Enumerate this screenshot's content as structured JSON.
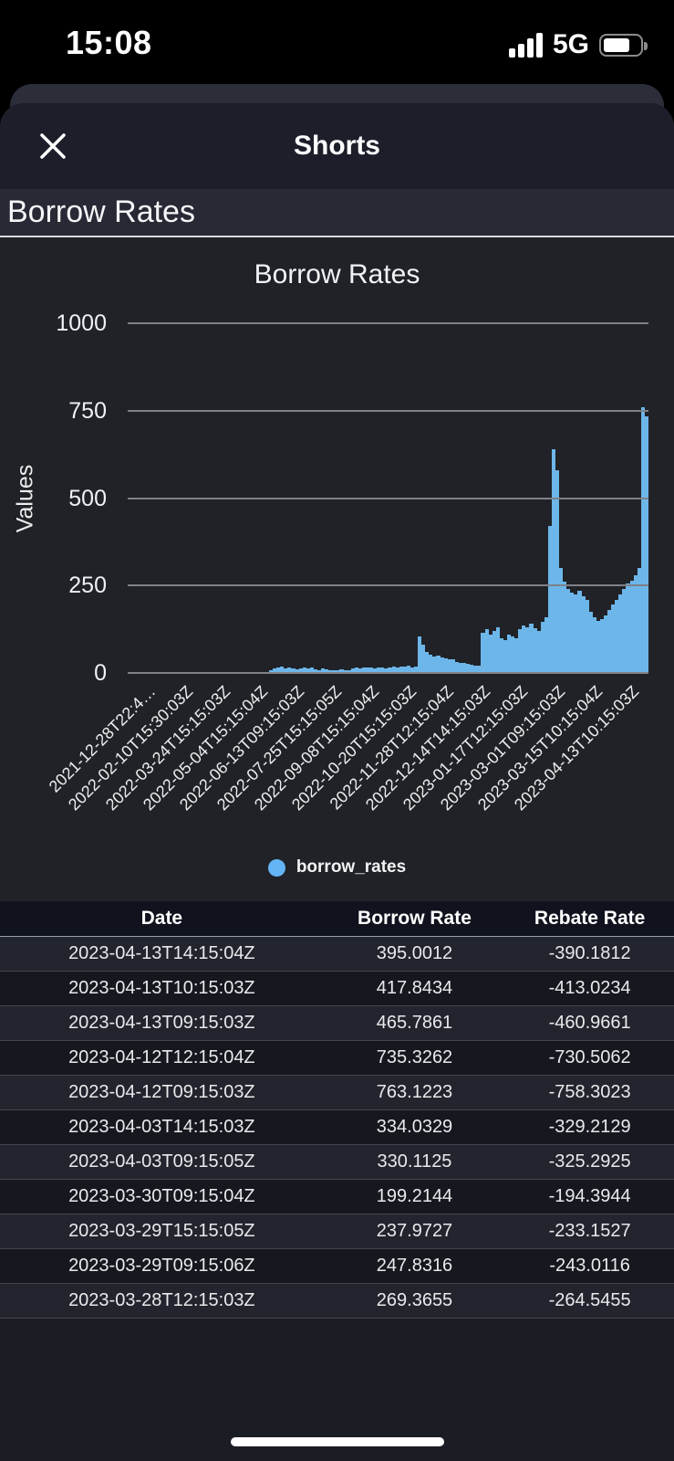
{
  "status_bar": {
    "time": "15:08",
    "network": "5G"
  },
  "sheet": {
    "title": "Shorts"
  },
  "section": {
    "title": "Borrow Rates"
  },
  "chart_data": {
    "type": "bar",
    "title": "Borrow Rates",
    "xlabel": "",
    "ylabel": "Values",
    "ylim": [
      0,
      1000
    ],
    "yticks": [
      0,
      250,
      500,
      750,
      1000
    ],
    "grid": "on",
    "legend_position": "bottom",
    "bar_color": "#6cb6ea",
    "legend_dot_color": "#64b5f6",
    "x_tick_labels": [
      "2021-12-28T22:4…",
      "2022-02-10T15:30:03Z",
      "2022-03-24T15:15:03Z",
      "2022-05-04T15:15:04Z",
      "2022-06-13T09:15:03Z",
      "2022-07-25T15:15:05Z",
      "2022-09-08T15:15:04Z",
      "2022-10-20T15:15:03Z",
      "2022-11-28T12:15:04Z",
      "2022-12-14T14:15:03Z",
      "2023-01-17T12:15:03Z",
      "2023-03-01T09:15:03Z",
      "2023-03-15T10:15:04Z",
      "2023-04-13T10:15:03Z"
    ],
    "series": [
      {
        "name": "borrow_rates",
        "values": [
          2,
          1,
          1,
          2,
          1,
          1,
          2,
          1,
          1,
          2,
          1,
          1,
          2,
          1,
          2,
          1,
          1,
          2,
          2,
          1,
          1,
          2,
          1,
          1,
          2,
          1,
          1,
          2,
          2,
          1,
          1,
          2,
          1,
          2,
          1,
          1,
          2,
          2,
          8,
          12,
          15,
          18,
          14,
          16,
          12,
          10,
          14,
          17,
          13,
          15,
          11,
          9,
          12,
          10,
          7,
          9,
          8,
          10,
          9,
          8,
          13,
          15,
          14,
          16,
          15,
          17,
          14,
          16,
          15,
          14,
          16,
          18,
          17,
          19,
          18,
          20,
          17,
          19,
          105,
          80,
          60,
          52,
          48,
          50,
          45,
          42,
          40,
          38,
          32,
          30,
          28,
          26,
          24,
          22,
          20,
          115,
          125,
          110,
          120,
          130,
          100,
          95,
          110,
          105,
          98,
          125,
          135,
          130,
          140,
          128,
          120,
          145,
          160,
          420,
          640,
          580,
          300,
          260,
          240,
          230,
          225,
          235,
          220,
          210,
          175,
          160,
          150,
          155,
          165,
          180,
          195,
          210,
          225,
          240,
          255,
          265,
          280,
          300,
          760,
          735
        ]
      }
    ]
  },
  "table": {
    "headers": [
      "Date",
      "Borrow Rate",
      "Rebate Rate"
    ],
    "rows": [
      [
        "2023-04-13T14:15:04Z",
        "395.0012",
        "-390.1812"
      ],
      [
        "2023-04-13T10:15:03Z",
        "417.8434",
        "-413.0234"
      ],
      [
        "2023-04-13T09:15:03Z",
        "465.7861",
        "-460.9661"
      ],
      [
        "2023-04-12T12:15:04Z",
        "735.3262",
        "-730.5062"
      ],
      [
        "2023-04-12T09:15:03Z",
        "763.1223",
        "-758.3023"
      ],
      [
        "2023-04-03T14:15:03Z",
        "334.0329",
        "-329.2129"
      ],
      [
        "2023-04-03T09:15:05Z",
        "330.1125",
        "-325.2925"
      ],
      [
        "2023-03-30T09:15:04Z",
        "199.2144",
        "-194.3944"
      ],
      [
        "2023-03-29T15:15:05Z",
        "237.9727",
        "-233.1527"
      ],
      [
        "2023-03-29T09:15:06Z",
        "247.8316",
        "-243.0116"
      ],
      [
        "2023-03-28T12:15:03Z",
        "269.3655",
        "-264.5455"
      ]
    ]
  }
}
